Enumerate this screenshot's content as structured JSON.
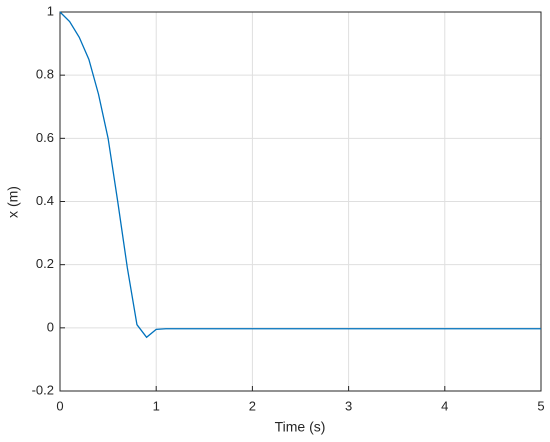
{
  "chart_data": {
    "type": "line",
    "x_label": "Time (s)",
    "y_label": "x (m)",
    "x": [
      0,
      0.1,
      0.2,
      0.3,
      0.4,
      0.5,
      0.6,
      0.7,
      0.8,
      0.9,
      1.0,
      1.1,
      2,
      3,
      4,
      5
    ],
    "series": [
      {
        "name": "x",
        "color": "#0072bd",
        "values": [
          1,
          0.97,
          0.92,
          0.85,
          0.74,
          0.6,
          0.4,
          0.19,
          0.01,
          -0.03,
          -0.005,
          -0.003,
          -0.003,
          -0.003,
          -0.003,
          -0.003
        ]
      }
    ],
    "xlim": [
      0,
      5
    ],
    "xticks": [
      0,
      1,
      2,
      3,
      4,
      5
    ],
    "ylim": [
      -0.2,
      1
    ],
    "yticks": [
      -0.2,
      0,
      0.2,
      0.4,
      0.6,
      0.8,
      1
    ],
    "grid": true
  }
}
